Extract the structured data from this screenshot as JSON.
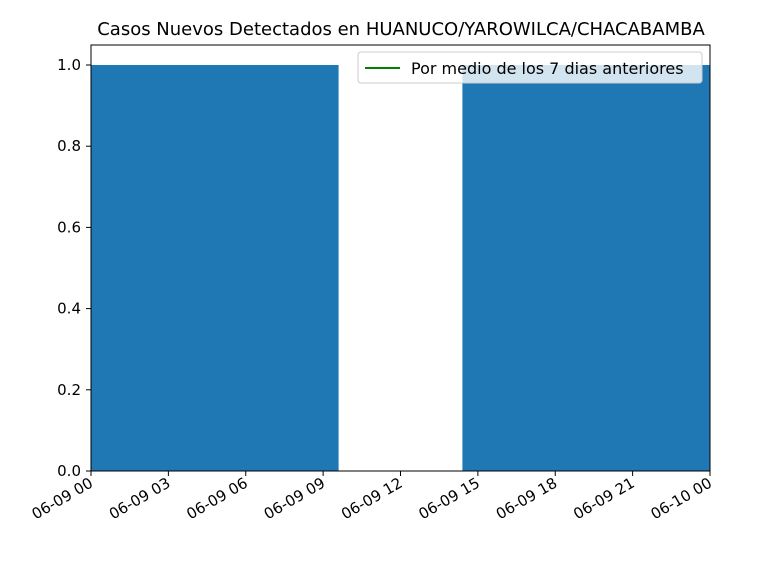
{
  "chart_data": {
    "type": "bar",
    "title": "Casos Nuevos Detectados en HUANUCO/YAROWILCA/CHACABAMBA",
    "xlabel": "",
    "ylabel": "",
    "bars": [
      {
        "start": "06-09 00",
        "end": "06-09 09.6",
        "value": 1.0
      },
      {
        "start": "06-09 14.4",
        "end": "06-10 00",
        "value": 1.0
      }
    ],
    "x_ticks": [
      "06-09 00",
      "06-09 03",
      "06-09 06",
      "06-09 09",
      "06-09 12",
      "06-09 15",
      "06-09 18",
      "06-09 21",
      "06-10 00"
    ],
    "x_tick_hours": [
      0,
      3,
      6,
      9,
      12,
      15,
      18,
      21,
      24
    ],
    "bar_hours": [
      [
        0,
        9.6
      ],
      [
        14.4,
        24
      ]
    ],
    "ylim": [
      0,
      1.0
    ],
    "y_ticks": [
      "0.0",
      "0.2",
      "0.4",
      "0.6",
      "0.8",
      "1.0"
    ],
    "y_tick_values": [
      0,
      0.2,
      0.4,
      0.6,
      0.8,
      1.0
    ],
    "legend": {
      "placement": "top-right",
      "entries": [
        {
          "label": "Por medio de los 7 dias anteriores",
          "color": "#008000"
        }
      ]
    },
    "bar_color": "#1f77b4",
    "grid": false
  }
}
